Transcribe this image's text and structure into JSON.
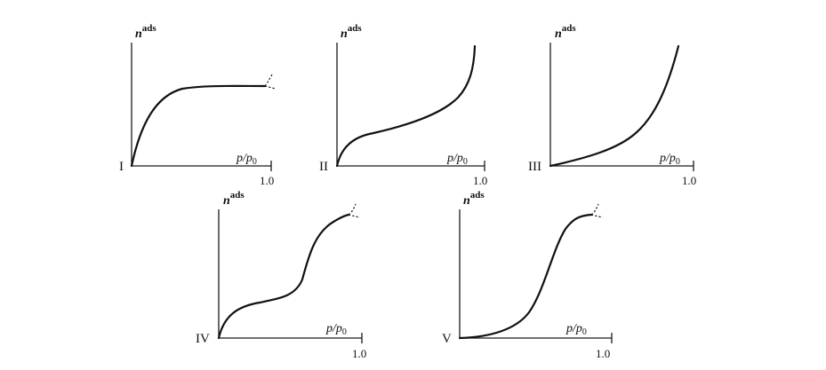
{
  "figure": {
    "y_label": "n",
    "y_label_sup": "ads",
    "x_label_main": "p/p",
    "x_label_sub": "0",
    "x_tick": "1.0"
  },
  "panels": [
    {
      "id": "I",
      "label": "I",
      "shape": "langmuir-plateau"
    },
    {
      "id": "II",
      "label": "II",
      "shape": "knee-then-rise"
    },
    {
      "id": "III",
      "label": "III",
      "shape": "convex-rise"
    },
    {
      "id": "IV",
      "label": "IV",
      "shape": "knee-step-plateau"
    },
    {
      "id": "V",
      "label": "V",
      "shape": "convex-step-plateau"
    }
  ]
}
